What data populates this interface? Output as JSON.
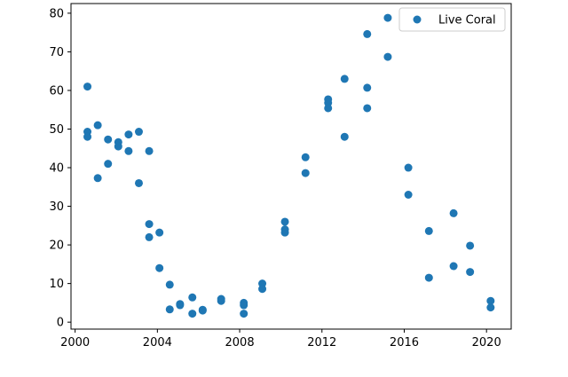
{
  "chart_data": {
    "type": "scatter",
    "title": "",
    "xlabel": "",
    "ylabel": "",
    "xlim": [
      1999.8,
      2021.2
    ],
    "ylim": [
      -1.8,
      82.5
    ],
    "xticks": [
      2000,
      2004,
      2008,
      2012,
      2016,
      2020
    ],
    "yticks": [
      0,
      10,
      20,
      30,
      40,
      50,
      60,
      70,
      80
    ],
    "grid": false,
    "legend_position": "top-right",
    "series": [
      {
        "name": "Live Coral",
        "color": "#1f77b4",
        "points": [
          [
            2000.6,
            61.0
          ],
          [
            2000.6,
            49.3
          ],
          [
            2000.6,
            48.0
          ],
          [
            2001.1,
            51.0
          ],
          [
            2001.1,
            37.3
          ],
          [
            2001.6,
            47.3
          ],
          [
            2001.6,
            41.0
          ],
          [
            2002.1,
            46.6
          ],
          [
            2002.1,
            45.5
          ],
          [
            2002.6,
            48.6
          ],
          [
            2002.6,
            44.3
          ],
          [
            2003.1,
            49.3
          ],
          [
            2003.1,
            36.0
          ],
          [
            2003.6,
            44.3
          ],
          [
            2003.6,
            25.4
          ],
          [
            2003.6,
            22.0
          ],
          [
            2004.1,
            23.2
          ],
          [
            2004.1,
            14.0
          ],
          [
            2004.6,
            9.7
          ],
          [
            2004.6,
            3.3
          ],
          [
            2005.1,
            4.7
          ],
          [
            2005.1,
            4.4
          ],
          [
            2005.7,
            6.4
          ],
          [
            2005.7,
            2.2
          ],
          [
            2006.2,
            3.2
          ],
          [
            2006.2,
            3.0
          ],
          [
            2007.1,
            6.0
          ],
          [
            2007.1,
            5.5
          ],
          [
            2008.2,
            5.0
          ],
          [
            2008.2,
            4.4
          ],
          [
            2008.2,
            2.2
          ],
          [
            2009.1,
            10.0
          ],
          [
            2009.1,
            8.6
          ],
          [
            2010.2,
            26.0
          ],
          [
            2010.2,
            24.0
          ],
          [
            2010.2,
            23.2
          ],
          [
            2011.2,
            42.7
          ],
          [
            2011.2,
            38.6
          ],
          [
            2012.3,
            57.7
          ],
          [
            2012.3,
            56.8
          ],
          [
            2012.3,
            55.4
          ],
          [
            2013.1,
            63.0
          ],
          [
            2013.1,
            48.0
          ],
          [
            2014.2,
            74.6
          ],
          [
            2014.2,
            60.7
          ],
          [
            2014.2,
            55.4
          ],
          [
            2015.2,
            78.8
          ],
          [
            2015.2,
            68.7
          ],
          [
            2016.2,
            40.0
          ],
          [
            2016.2,
            33.0
          ],
          [
            2017.2,
            23.6
          ],
          [
            2017.2,
            11.5
          ],
          [
            2018.4,
            28.2
          ],
          [
            2018.4,
            14.5
          ],
          [
            2019.2,
            19.8
          ],
          [
            2019.2,
            13.0
          ],
          [
            2020.2,
            5.5
          ],
          [
            2020.2,
            3.8
          ]
        ]
      }
    ]
  }
}
